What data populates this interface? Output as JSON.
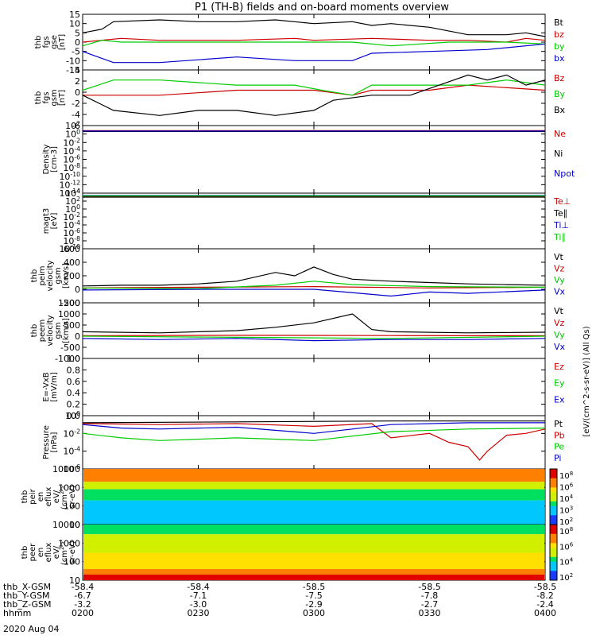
{
  "title": "P1 (TH-B) fields and on-board moments overview",
  "date_label": "2020 Aug 04",
  "orbit_rows": [
    {
      "label": "thb_X-GSM",
      "values": [
        "-58.4",
        "-58.4",
        "-58.5",
        "-58.5",
        "-58.5"
      ]
    },
    {
      "label": "thb_Y-GSM",
      "values": [
        "-6.7",
        "-7.1",
        "-7.5",
        "-7.8",
        "-8.2"
      ]
    },
    {
      "label": "thb_Z-GSM",
      "values": [
        "-3.2",
        "-3.0",
        "-2.9",
        "-2.7",
        "-2.4"
      ]
    },
    {
      "label": "hhmm",
      "values": [
        "0200",
        "0230",
        "0300",
        "0330",
        "0400"
      ]
    }
  ],
  "colors": {
    "black": "#000000",
    "red": "#cc0000",
    "green": "#00cc00",
    "blue": "#0000cc"
  },
  "chart_data": [
    {
      "type": "line",
      "id": "fgs_gse",
      "ylabel_lines": [
        "thb",
        "fgs",
        "gse",
        "[nT]"
      ],
      "ylim": [
        -15,
        15
      ],
      "yticks": [
        "15",
        "10",
        "5",
        "0",
        "-5",
        "-10",
        "-15"
      ],
      "xlim": [
        0,
        120
      ],
      "series": [
        {
          "name": "Bt",
          "color": "#000000",
          "x": [
            0,
            5,
            8,
            20,
            30,
            40,
            50,
            60,
            70,
            75,
            80,
            90,
            100,
            110,
            115,
            120
          ],
          "values": [
            5,
            7,
            11,
            12,
            11,
            11,
            12,
            10,
            11,
            9,
            10,
            8,
            4,
            4,
            5,
            3
          ]
        },
        {
          "name": "bz",
          "color": "#cc0000",
          "x": [
            0,
            10,
            20,
            40,
            55,
            60,
            75,
            90,
            100,
            110,
            115,
            120
          ],
          "values": [
            0,
            2,
            1,
            1,
            2,
            1,
            2,
            1,
            1,
            0,
            2,
            1
          ]
        },
        {
          "name": "by",
          "color": "#00cc00",
          "x": [
            0,
            5,
            10,
            30,
            50,
            70,
            80,
            95,
            110,
            120
          ],
          "values": [
            -2,
            1,
            0,
            0,
            0,
            0,
            -2,
            0,
            0,
            -1
          ]
        },
        {
          "name": "bx",
          "color": "#0000cc",
          "x": [
            0,
            8,
            20,
            40,
            55,
            70,
            75,
            90,
            105,
            120
          ],
          "values": [
            -5,
            -11,
            -11,
            -8,
            -10,
            -10,
            -6,
            -5,
            -4,
            -1
          ]
        }
      ]
    },
    {
      "type": "line",
      "id": "fgs_gsm",
      "ylabel_lines": [
        "thb",
        "fgs",
        "gsm",
        "[nT]"
      ],
      "ylim": [
        -7,
        4
      ],
      "yticks": [
        "4",
        "2",
        "0",
        "-2",
        "-4",
        "-6"
      ],
      "xlim": [
        0,
        120
      ],
      "series": [
        {
          "name": "Bz",
          "color": "#cc0000",
          "x": [
            0,
            10,
            20,
            40,
            60,
            70,
            75,
            90,
            100,
            120
          ],
          "values": [
            -1,
            -1,
            -1,
            0,
            0,
            -1,
            0,
            0,
            1,
            0
          ]
        },
        {
          "name": "By",
          "color": "#00cc00",
          "x": [
            0,
            8,
            20,
            40,
            55,
            62,
            70,
            75,
            85,
            100,
            110,
            120
          ],
          "values": [
            0,
            2,
            2,
            1,
            1,
            0,
            -1,
            1,
            1,
            1,
            2,
            1
          ]
        },
        {
          "name": "Bx",
          "color": "#000000",
          "x": [
            0,
            8,
            20,
            30,
            40,
            50,
            60,
            65,
            75,
            85,
            100,
            105,
            110,
            115,
            120
          ],
          "values": [
            -1,
            -4,
            -5,
            -4,
            -4,
            -5,
            -4,
            -2,
            -1,
            -1,
            3,
            2,
            3,
            1,
            2
          ]
        }
      ]
    },
    {
      "type": "line",
      "id": "density",
      "scale": "log",
      "ylabel_lines": [
        "Density",
        "[cm-3]"
      ],
      "ylim": [
        -14,
        2
      ],
      "yticks": [
        "10^2",
        "10^0",
        "10^-2",
        "10^-4",
        "10^-6",
        "10^-8",
        "10^-10",
        "10^-12",
        "10^-14"
      ],
      "xlim": [
        0,
        120
      ],
      "series": [
        {
          "name": "Ne",
          "color": "#cc0000",
          "x": [
            0,
            120
          ],
          "values": [
            0.8,
            0.8
          ]
        },
        {
          "name": "Ni",
          "color": "#000000",
          "x": [
            0,
            120
          ],
          "values": [
            0.6,
            0.6
          ]
        },
        {
          "name": "Npot",
          "color": "#0000cc",
          "x": [
            0,
            120
          ],
          "values": [
            0.7,
            0.7
          ]
        }
      ]
    },
    {
      "type": "line",
      "id": "temperature",
      "scale": "log",
      "ylabel_lines": [
        "magt3",
        "[eV]"
      ],
      "ylim": [
        -10,
        4
      ],
      "yticks": [
        "10^4",
        "10^2",
        "10^0",
        "10^-2",
        "10^-4",
        "10^-6",
        "10^-8",
        "10^-10"
      ],
      "xlim": [
        0,
        120
      ],
      "series": [
        {
          "name": "Te⊥",
          "color": "#cc0000",
          "x": [
            0,
            120
          ],
          "values": [
            3.2,
            3.2
          ]
        },
        {
          "name": "Te∥",
          "color": "#000000",
          "x": [
            0,
            120
          ],
          "values": [
            3.0,
            3.0
          ]
        },
        {
          "name": "Ti⊥",
          "color": "#0000cc",
          "x": [
            0,
            120
          ],
          "values": [
            3.4,
            3.4
          ]
        },
        {
          "name": "Ti∥",
          "color": "#00cc00",
          "x": [
            0,
            120
          ],
          "values": [
            3.3,
            3.3
          ]
        }
      ]
    },
    {
      "type": "line",
      "id": "peim_velocity",
      "ylabel_lines": [
        "thb",
        "peim",
        "velocity",
        "gsm",
        "[km/s]"
      ],
      "ylim": [
        -200,
        600
      ],
      "yticks": [
        "600",
        "400",
        "200",
        "0",
        "-200"
      ],
      "xlim": [
        0,
        120
      ],
      "series": [
        {
          "name": "Vt",
          "color": "#000000",
          "x": [
            0,
            10,
            20,
            30,
            40,
            50,
            55,
            60,
            65,
            70,
            80,
            90,
            100,
            110,
            120
          ],
          "values": [
            50,
            60,
            60,
            80,
            120,
            250,
            200,
            330,
            220,
            150,
            120,
            100,
            80,
            70,
            60
          ]
        },
        {
          "name": "Vz",
          "color": "#cc0000",
          "x": [
            0,
            30,
            60,
            90,
            120
          ],
          "values": [
            20,
            30,
            40,
            20,
            30
          ]
        },
        {
          "name": "Vy",
          "color": "#00cc00",
          "x": [
            0,
            30,
            50,
            60,
            70,
            90,
            120
          ],
          "values": [
            20,
            10,
            60,
            120,
            70,
            40,
            30
          ]
        },
        {
          "name": "Vx",
          "color": "#0000cc",
          "x": [
            0,
            30,
            60,
            80,
            90,
            100,
            120
          ],
          "values": [
            -10,
            0,
            0,
            -100,
            -40,
            -60,
            -10
          ]
        }
      ]
    },
    {
      "type": "line",
      "id": "peem_velocity",
      "ylabel_lines": [
        "thb",
        "peem",
        "velocity",
        "gsm",
        "[km/s]"
      ],
      "ylim": [
        -1000,
        1500
      ],
      "yticks": [
        "1500",
        "1000",
        "500",
        "0",
        "-500",
        "-1000"
      ],
      "xlim": [
        0,
        120
      ],
      "series": [
        {
          "name": "Vt",
          "color": "#000000",
          "x": [
            0,
            20,
            40,
            50,
            60,
            70,
            75,
            80,
            100,
            120
          ],
          "values": [
            200,
            150,
            250,
            400,
            600,
            1000,
            300,
            200,
            150,
            180
          ]
        },
        {
          "name": "Vz",
          "color": "#cc0000",
          "x": [
            0,
            40,
            80,
            120
          ],
          "values": [
            20,
            40,
            30,
            20
          ]
        },
        {
          "name": "Vy",
          "color": "#00cc00",
          "x": [
            0,
            40,
            80,
            120
          ],
          "values": [
            0,
            -50,
            -100,
            0
          ]
        },
        {
          "name": "Vx",
          "color": "#0000cc",
          "x": [
            0,
            20,
            40,
            60,
            80,
            100,
            120
          ],
          "values": [
            -100,
            -150,
            -100,
            -200,
            -150,
            -150,
            -100
          ]
        }
      ]
    },
    {
      "type": "line",
      "id": "efield",
      "ylabel_lines": [
        "E=-VxB",
        "[mV/m]"
      ],
      "ylim": [
        0,
        1
      ],
      "yticks": [
        "1.0",
        "0.8",
        "0.6",
        "0.4",
        "0.2",
        "0.0"
      ],
      "xlim": [
        0,
        120
      ],
      "series": [
        {
          "name": "Ez",
          "color": "#cc0000",
          "x": [],
          "values": []
        },
        {
          "name": "Ey",
          "color": "#00cc00",
          "x": [],
          "values": []
        },
        {
          "name": "Ex",
          "color": "#0000cc",
          "x": [],
          "values": []
        }
      ]
    },
    {
      "type": "line",
      "id": "pressure",
      "scale": "log",
      "ylabel_lines": [
        "Pressure",
        "[nPa]"
      ],
      "ylim": [
        -6,
        0
      ],
      "yticks": [
        "10^0",
        "10^-2",
        "10^-4",
        "10^-6"
      ],
      "xlim": [
        0,
        120
      ],
      "series": [
        {
          "name": "Pt",
          "color": "#000000",
          "x": [
            0,
            40,
            80,
            120
          ],
          "values": [
            -0.8,
            -0.7,
            -0.6,
            -0.6
          ]
        },
        {
          "name": "Pb",
          "color": "#cc0000",
          "x": [
            0,
            20,
            40,
            60,
            75,
            80,
            90,
            95,
            100,
            103,
            105,
            110,
            115,
            120
          ],
          "values": [
            -0.9,
            -1.0,
            -0.9,
            -1.2,
            -0.9,
            -2.5,
            -2.0,
            -3.0,
            -3.5,
            -5.0,
            -4.0,
            -2.2,
            -2.0,
            -1.5
          ]
        },
        {
          "name": "Pe",
          "color": "#00cc00",
          "x": [
            0,
            10,
            20,
            40,
            60,
            80,
            100,
            120
          ],
          "values": [
            -2.0,
            -2.5,
            -2.8,
            -2.5,
            -2.8,
            -1.8,
            -1.5,
            -1.4
          ]
        },
        {
          "name": "Pi",
          "color": "#0000cc",
          "x": [
            0,
            10,
            20,
            40,
            60,
            70,
            80,
            100,
            120
          ],
          "values": [
            -1.0,
            -1.4,
            -1.5,
            -1.3,
            -2.0,
            -1.5,
            -1.0,
            -0.8,
            -0.8
          ]
        }
      ]
    },
    {
      "type": "heatmap",
      "id": "peir_eflux",
      "scale": "log",
      "ylabel_lines": [
        "thb",
        "peir",
        "en",
        "eflux",
        "eV/",
        "(cm^2-s-",
        "sr-eV)"
      ],
      "ylim": [
        10,
        10000
      ],
      "yticks": [
        "10000",
        "1000",
        "100",
        "10"
      ],
      "colorbar_ticks": [
        "10^8",
        "10^6",
        "10^4",
        "10^3",
        "10^2"
      ],
      "bands": [
        {
          "from": 10000,
          "to": 2000,
          "level": 0.85
        },
        {
          "from": 2000,
          "to": 800,
          "level": 0.6
        },
        {
          "from": 800,
          "to": 200,
          "level": 0.35
        },
        {
          "from": 200,
          "to": 10,
          "level": 0.25
        }
      ]
    },
    {
      "type": "heatmap",
      "id": "peer_eflux",
      "scale": "log",
      "ylabel_lines": [
        "thb",
        "peer",
        "en",
        "eflux",
        "eV/",
        "(cm^2-s-",
        "sr-eV)"
      ],
      "ylim": [
        10,
        10000
      ],
      "yticks": [
        "10000",
        "1000",
        "100",
        "10"
      ],
      "colorbar_ticks": [
        "10^8",
        "10^6",
        "10^4",
        "10^2"
      ],
      "bands": [
        {
          "from": 10000,
          "to": 3000,
          "level": 0.45
        },
        {
          "from": 3000,
          "to": 300,
          "level": 0.6
        },
        {
          "from": 300,
          "to": 40,
          "level": 0.7
        },
        {
          "from": 40,
          "to": 20,
          "level": 0.8
        },
        {
          "from": 20,
          "to": 10,
          "level": 0.95
        }
      ]
    }
  ],
  "colorbar_title": "[eV/(cm^2-s-sr-eV)] (All Qs)"
}
